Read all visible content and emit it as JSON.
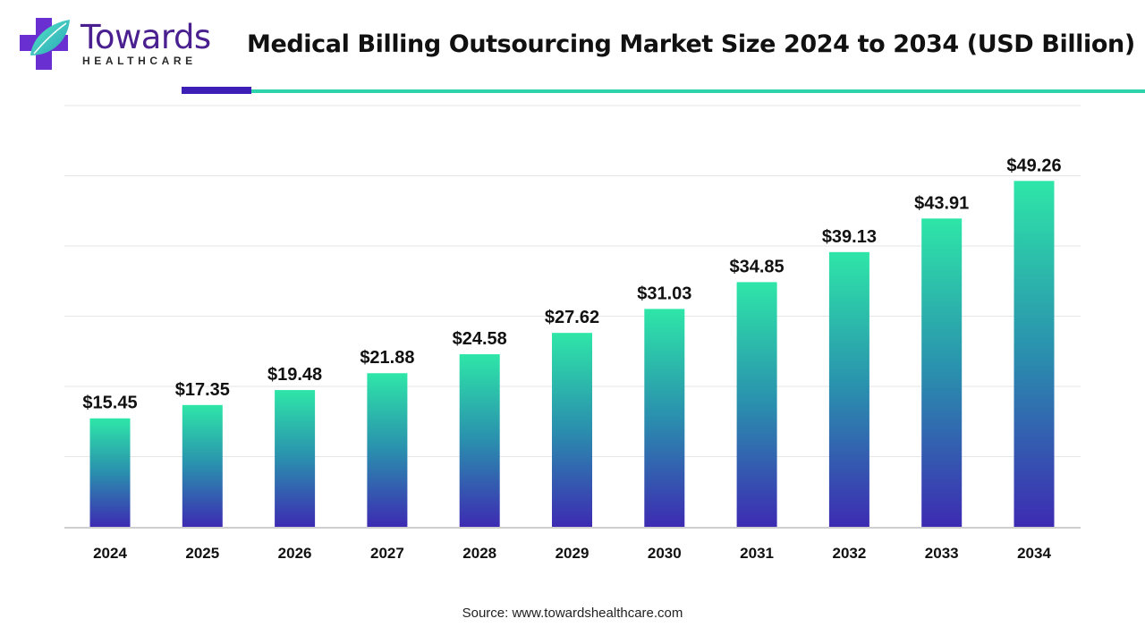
{
  "brand": {
    "name": "Towards",
    "sub": "HEALTHCARE",
    "colors": {
      "purple": "#4a1f8f",
      "teal": "#2fd3a9",
      "accent": "#3d1fb8"
    }
  },
  "chart_data": {
    "type": "bar",
    "title": "Medical Billing Outsourcing Market Size 2024 to 2034 (USD Billion)",
    "categories": [
      "2024",
      "2025",
      "2026",
      "2027",
      "2028",
      "2029",
      "2030",
      "2031",
      "2032",
      "2033",
      "2034"
    ],
    "values": [
      15.45,
      17.35,
      19.48,
      21.88,
      24.58,
      27.62,
      31.03,
      34.85,
      39.13,
      43.91,
      49.26
    ],
    "labels": [
      "$15.45",
      "$17.35",
      "$19.48",
      "$21.88",
      "$24.58",
      "$27.62",
      "$31.03",
      "$34.85",
      "$39.13",
      "$43.91",
      "$49.26"
    ],
    "xlabel": "",
    "ylabel": "",
    "ylim": [
      0,
      60
    ],
    "grid": true,
    "legend": "none",
    "bar_gradient": {
      "top": "#2ee6a8",
      "middle": "#2a8fae",
      "bottom": "#3d2bb2"
    }
  },
  "source": {
    "label": "Source:",
    "text": "www.towardshealthcare.com"
  }
}
